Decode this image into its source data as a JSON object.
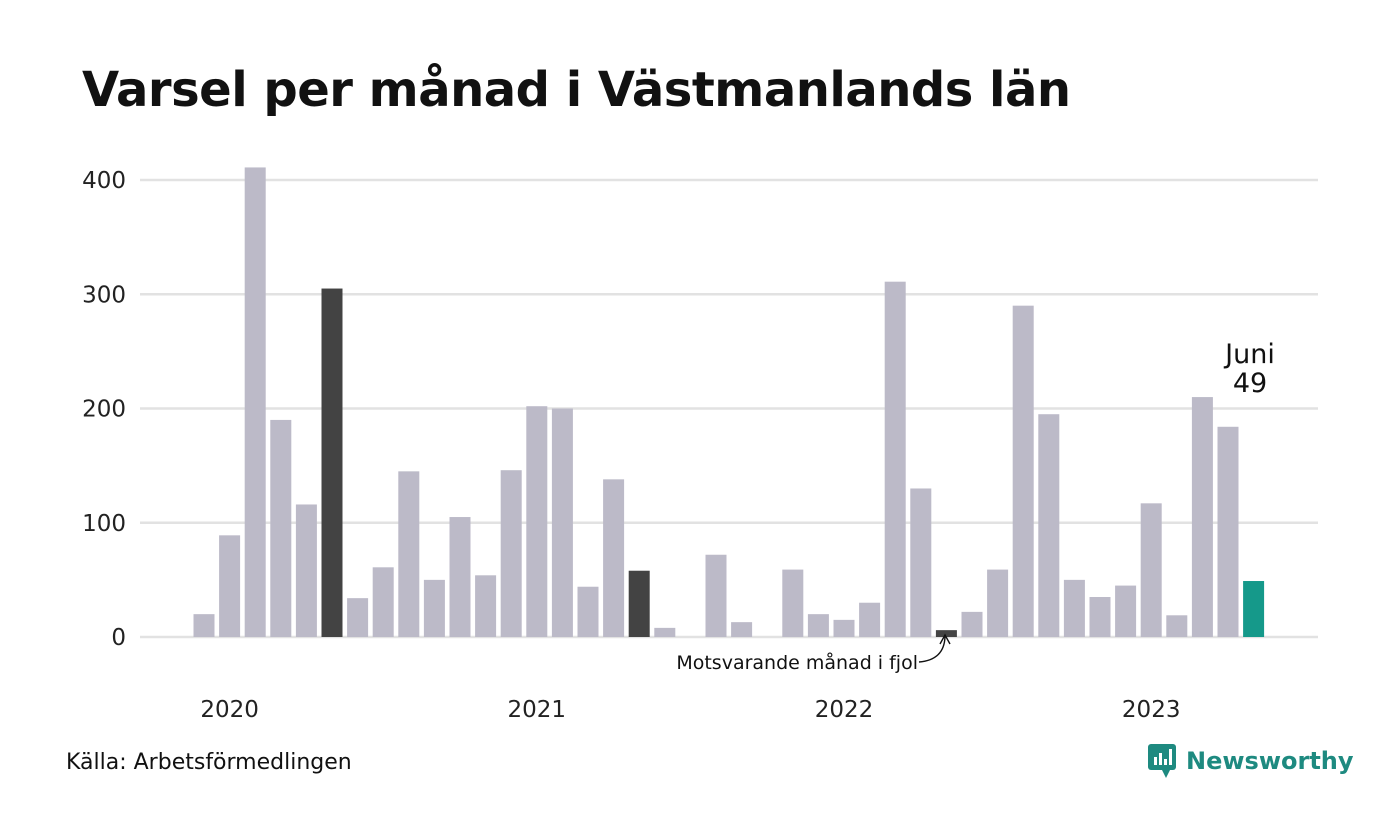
{
  "title": "Varsel per månad i Västmanlands län",
  "source": "Källa: Arbetsförmedlingen",
  "brand": {
    "name": "Newsworthy",
    "icon": "newsworthy-logo-icon"
  },
  "chart_data": {
    "type": "bar",
    "x_labels": [
      "2020",
      "2021",
      "2022",
      "2023"
    ],
    "x_label_positions": [
      1,
      13,
      25,
      37
    ],
    "values": [
      20,
      89,
      411,
      190,
      116,
      305,
      34,
      61,
      145,
      50,
      105,
      54,
      146,
      202,
      200,
      44,
      138,
      58,
      8,
      0,
      72,
      13,
      0,
      59,
      20,
      15,
      30,
      311,
      130,
      6,
      22,
      59,
      290,
      195,
      50,
      35,
      45,
      117,
      19,
      210,
      184,
      49
    ],
    "highlight_same_month": [
      5,
      17,
      29
    ],
    "current_index": 41,
    "ylim": [
      0,
      400
    ],
    "yticks": [
      0,
      100,
      200,
      300,
      400
    ],
    "grid": true,
    "colors": {
      "bar": "#bcbac8",
      "same_month": "#434343",
      "current": "#15998a",
      "grid": "#e2e2e2"
    },
    "annotation": "Motsvarande månad i fjol",
    "current_label": {
      "month": "Juni",
      "value": "49"
    }
  }
}
